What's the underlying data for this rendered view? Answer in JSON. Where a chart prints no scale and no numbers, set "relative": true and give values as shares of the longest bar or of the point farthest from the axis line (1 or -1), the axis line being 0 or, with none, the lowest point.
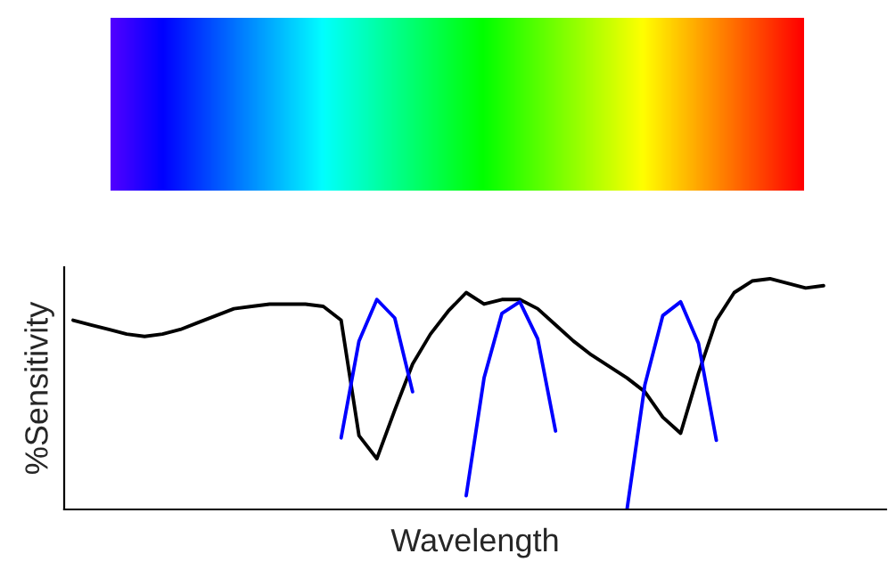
{
  "chart_data": {
    "type": "line",
    "xlabel": "Wavelength",
    "ylabel": "%Sensitivity",
    "relative": true,
    "tick_labels": false,
    "grid": false,
    "categories": [
      null,
      null,
      null,
      null,
      null,
      null,
      null,
      null,
      null,
      null,
      null,
      null,
      null,
      null,
      null,
      null,
      null,
      null,
      null,
      null,
      null,
      null,
      null,
      null,
      null,
      null,
      null,
      null,
      null,
      null,
      null,
      null,
      null,
      null,
      null,
      null,
      null,
      null,
      null,
      null,
      null,
      null,
      null,
      null,
      null,
      null
    ],
    "series": [
      {
        "color": "#000000",
        "values": [
          0.82,
          0.8,
          0.78,
          0.76,
          0.75,
          0.76,
          0.78,
          0.81,
          0.84,
          0.87,
          0.88,
          0.89,
          0.89,
          0.89,
          0.88,
          0.82,
          0.32,
          0.22,
          0.43,
          0.63,
          0.76,
          0.86,
          0.94,
          0.89,
          0.91,
          0.91,
          0.87,
          0.8,
          0.73,
          0.67,
          0.62,
          0.57,
          0.51,
          0.4,
          0.33,
          0.59,
          0.82,
          0.94,
          0.99,
          1.0,
          0.98,
          0.96,
          0.97,
          null,
          null,
          null
        ]
      },
      {
        "color": "#0000ff",
        "values": [
          null,
          null,
          null,
          null,
          null,
          null,
          null,
          null,
          null,
          null,
          null,
          null,
          null,
          null,
          null,
          0.31,
          0.73,
          0.91,
          0.83,
          0.51,
          null,
          null,
          null,
          null,
          null,
          null,
          null,
          null,
          null,
          null,
          null,
          null,
          null,
          null,
          null,
          null,
          null,
          null,
          null,
          null,
          null,
          null,
          null,
          null,
          null,
          null
        ]
      },
      {
        "color": "#0000ff",
        "values": [
          null,
          null,
          null,
          null,
          null,
          null,
          null,
          null,
          null,
          null,
          null,
          null,
          null,
          null,
          null,
          null,
          null,
          null,
          null,
          null,
          null,
          null,
          0.06,
          0.57,
          0.85,
          0.9,
          0.74,
          0.34,
          null,
          null,
          null,
          null,
          null,
          null,
          null,
          null,
          null,
          null,
          null,
          null,
          null,
          null,
          null,
          null,
          null,
          null
        ]
      },
      {
        "color": "#0000ff",
        "values": [
          null,
          null,
          null,
          null,
          null,
          null,
          null,
          null,
          null,
          null,
          null,
          null,
          null,
          null,
          null,
          null,
          null,
          null,
          null,
          null,
          null,
          null,
          null,
          null,
          null,
          null,
          null,
          null,
          null,
          null,
          null,
          0.0,
          0.54,
          0.84,
          0.9,
          0.72,
          0.3,
          null,
          null,
          null,
          null,
          null,
          null,
          null,
          null,
          null
        ]
      }
    ]
  }
}
